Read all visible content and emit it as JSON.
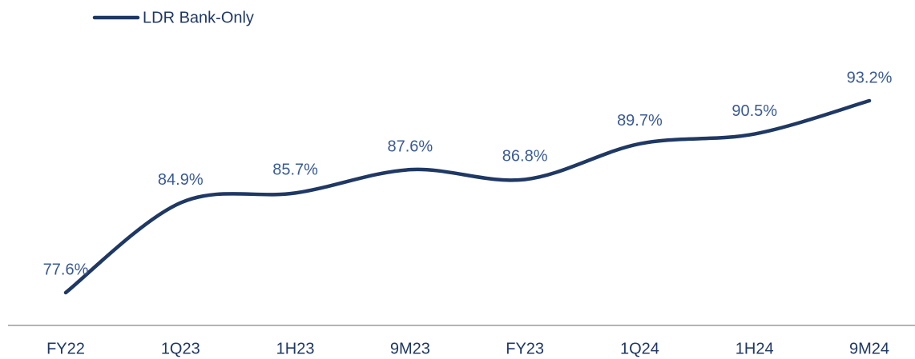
{
  "chart_data": {
    "type": "line",
    "categories": [
      "FY22",
      "1Q23",
      "1H23",
      "9M23",
      "FY23",
      "1Q24",
      "1H24",
      "9M24"
    ],
    "series": [
      {
        "name": "LDR Bank-Only",
        "color": "#1f3864",
        "values": [
          77.6,
          84.9,
          85.7,
          87.6,
          86.8,
          89.7,
          90.5,
          93.2
        ],
        "value_labels": [
          "77.6%",
          "84.9%",
          "85.7%",
          "87.6%",
          "86.8%",
          "89.7%",
          "90.5%",
          "93.2%"
        ]
      }
    ],
    "legend": "top-left"
  }
}
